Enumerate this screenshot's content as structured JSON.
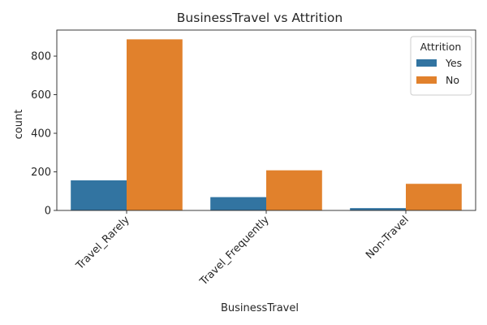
{
  "chart_data": {
    "type": "bar",
    "title": "BusinessTravel vs Attrition",
    "xlabel": "BusinessTravel",
    "ylabel": "count",
    "categories": [
      "Travel_Rarely",
      "Travel_Frequently",
      "Non-Travel"
    ],
    "series": [
      {
        "name": "Yes",
        "color": "#3274a1",
        "values": [
          156,
          69,
          12
        ]
      },
      {
        "name": "No",
        "color": "#e1812c",
        "values": [
          887,
          208,
          138
        ]
      }
    ],
    "ylim": [
      0,
      935
    ],
    "yticks": [
      0,
      200,
      400,
      600,
      800
    ],
    "legend": {
      "title": "Attrition",
      "placement": "top-right"
    },
    "grid": false
  }
}
